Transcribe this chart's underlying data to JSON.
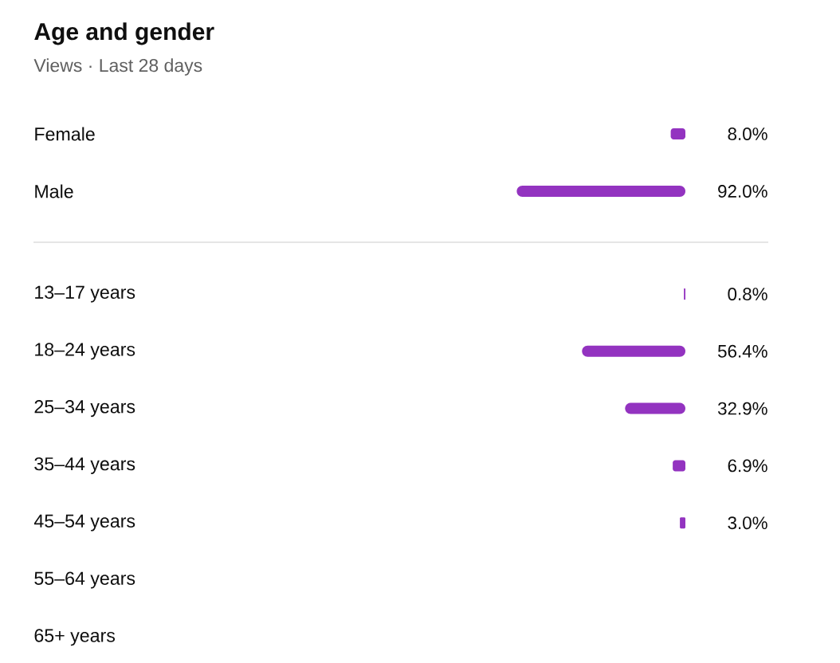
{
  "chart_data": [
    {
      "type": "bar",
      "title": "Age and gender",
      "subtitle": "Views · Last 28 days",
      "orientation": "horizontal",
      "categories": [
        "Female",
        "Male"
      ],
      "values": [
        8.0,
        92.0
      ],
      "value_labels": [
        "8.0%",
        "92.0%"
      ],
      "color": "#9333c0"
    },
    {
      "type": "bar",
      "orientation": "horizontal",
      "categories": [
        "13–17 years",
        "18–24 years",
        "25–34 years",
        "35–44 years",
        "45–54 years",
        "55–64 years",
        "65+ years"
      ],
      "values": [
        0.8,
        56.4,
        32.9,
        6.9,
        3.0,
        null,
        null
      ],
      "value_labels": [
        "0.8%",
        "56.4%",
        "32.9%",
        "6.9%",
        "3.0%",
        null,
        null
      ],
      "color": "#9333c0"
    }
  ]
}
